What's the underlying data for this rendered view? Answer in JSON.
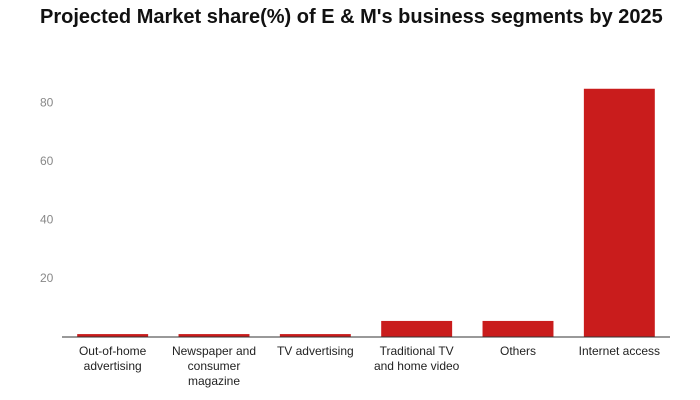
{
  "chart_data": {
    "type": "bar",
    "title": "Projected Market share(%) of E & M's business segments by 2025",
    "categories": [
      "Out-of-home advertising",
      "Newspaper and consumer magazine",
      "TV advertising",
      "Traditional TV and home video",
      "Others",
      "Internet access"
    ],
    "values": [
      1,
      1,
      1,
      5.5,
      5.5,
      85
    ],
    "color": "#c91c1c",
    "ylim": [
      0,
      88
    ],
    "yticks": [
      20,
      40,
      60,
      80
    ],
    "grid": false
  }
}
